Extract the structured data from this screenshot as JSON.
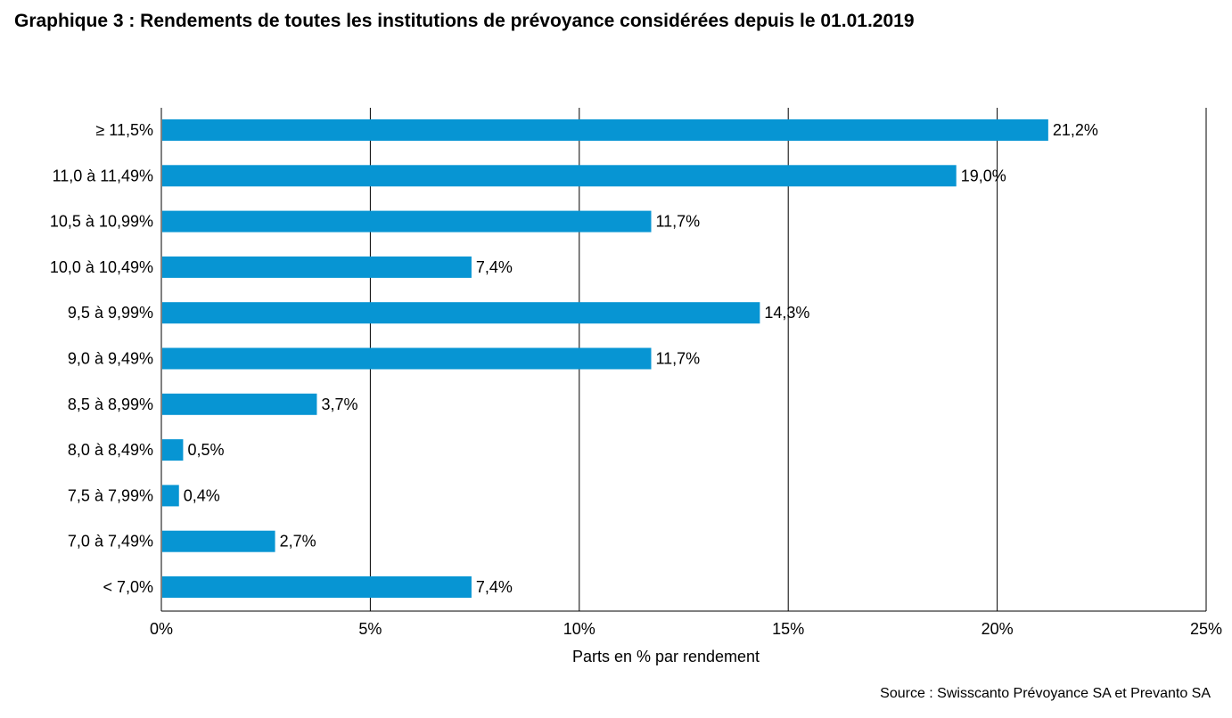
{
  "chart_data": {
    "type": "bar",
    "orientation": "horizontal",
    "title": "Graphique 3 : Rendements de toutes les institutions de prévoyance considérées depuis le 01.01.2019",
    "xlabel": "Parts en % par rendement",
    "ylabel": "",
    "categories": [
      "≥ 11,5%",
      "11,0 à 11,49%",
      "10,5 à 10,99%",
      "10,0 à 10,49%",
      "9,5 à 9,99%",
      "9,0 à 9,49%",
      "8,5 à 8,99%",
      "8,0 à 8,49%",
      "7,5  à 7,99%",
      "7,0 à 7,49%",
      "< 7,0%"
    ],
    "values": [
      21.2,
      19.0,
      11.7,
      7.4,
      14.3,
      11.7,
      3.7,
      0.5,
      0.4,
      2.7,
      7.4
    ],
    "value_labels": [
      "21,2%",
      "19,0%",
      "11,7%",
      "7,4%",
      "14,3%",
      "11,7%",
      "3,7%",
      "0,5%",
      "0,4%",
      "2,7%",
      "7,4%"
    ],
    "xlim": [
      0,
      25
    ],
    "xticks": [
      0,
      5,
      10,
      15,
      20,
      25
    ],
    "xtick_labels": [
      "0%",
      "5%",
      "10%",
      "15%",
      "20%",
      "25%"
    ],
    "grid": "vertical",
    "legend": "none",
    "bar_color": "#0795d3",
    "source": "Source : Swisscanto Prévoyance SA et Prevanto SA"
  }
}
